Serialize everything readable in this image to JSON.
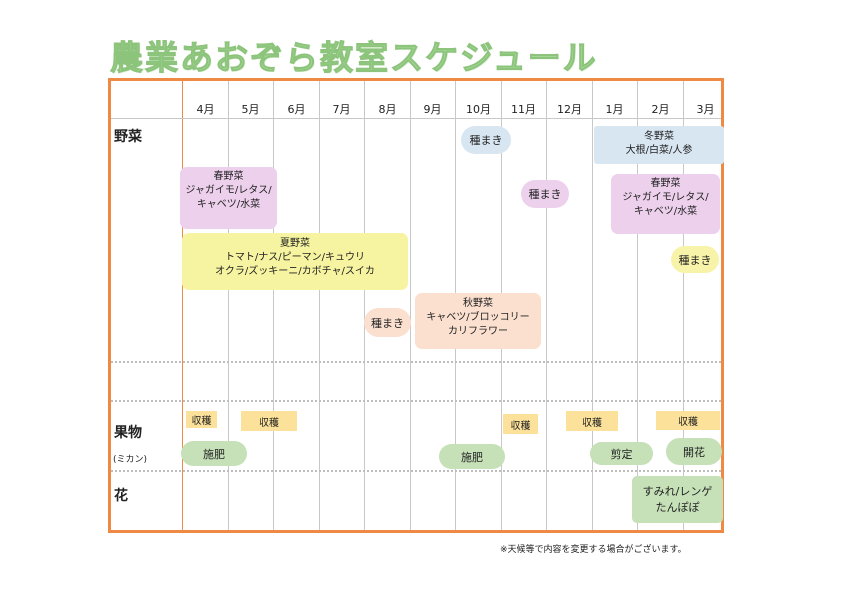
{
  "title": "農業あおぞら教室スケジュール",
  "months": [
    "4月",
    "5月",
    "6月",
    "7月",
    "8月",
    "9月",
    "10月",
    "11月",
    "12月",
    "1月",
    "2月",
    "3月"
  ],
  "categories": {
    "vegetables": "野菜",
    "fruit": "果物",
    "fruit_sub": "(ミカン)",
    "flowers": "花"
  },
  "vegetables": {
    "sowing_oct": "種まき",
    "winter_title": "冬野菜",
    "winter_items": "大根/白菜/人参",
    "spring1_title": "春野菜",
    "spring1_line1": "ジャガイモ/レタス/",
    "spring1_line2": "キャベツ/水菜",
    "sowing_nov": "種まき",
    "spring2_title": "春野菜",
    "spring2_line1": "ジャガイモ/レタス/",
    "spring2_line2": "キャベツ/水菜",
    "summer_title": "夏野菜",
    "summer_line1": "トマト/ナス/ピーマン/キュウリ",
    "summer_line2": "オクラ/ズッキーニ/カボチャ/スイカ",
    "sowing_mar": "種まき",
    "sowing_aug": "種まき",
    "autumn_title": "秋野菜",
    "autumn_line1": "キャベツ/ブロッコリー",
    "autumn_line2": "カリフラワー"
  },
  "fruit": {
    "harvest_apr": "収穫",
    "harvest_may": "収穫",
    "harvest_nov": "収穫",
    "harvest_dec": "収穫",
    "harvest_feb": "収穫",
    "fertilize_apr": "施肥",
    "fertilize_oct": "施肥",
    "prune": "剪定",
    "bloom": "開花"
  },
  "flowers": {
    "line1": "すみれ/レンゲ",
    "line2": "たんぽぽ"
  },
  "note": "※天候等で内容を変更する場合がございます。",
  "colors": {
    "frame": "#ef8a45",
    "title": "#a9d89a",
    "pink": "#ecd0ec",
    "blue": "#d8e6f2",
    "yellow": "#f6f4a0",
    "peach": "#fbe0d0",
    "green": "#c6e0b8",
    "harvest": "#fbe19a"
  }
}
